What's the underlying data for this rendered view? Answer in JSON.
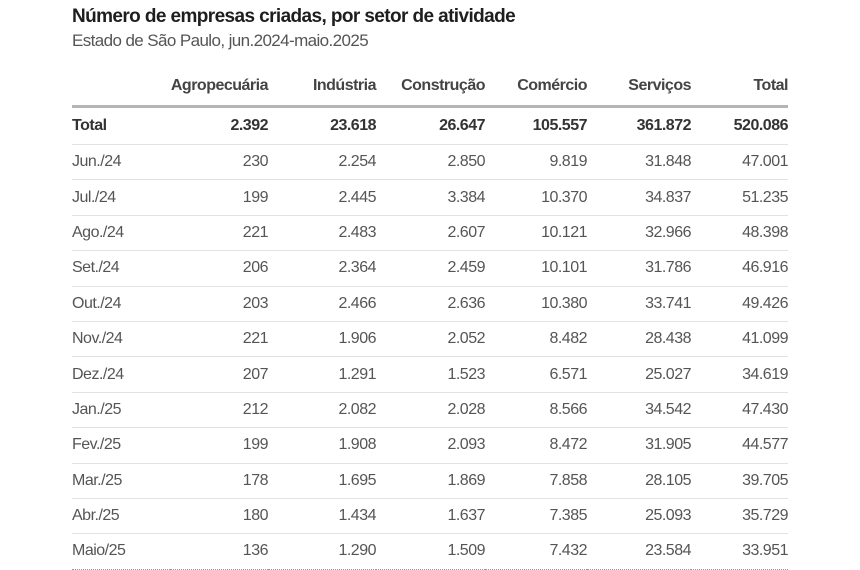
{
  "title": "Número de empresas criadas, por setor de atividade",
  "subtitle": "Estado de São Paulo, jun.2024-maio.2025",
  "table": {
    "headers": [
      "",
      "Agropecuária",
      "Indústria",
      "Construção",
      "Comércio",
      "Serviços",
      "Total"
    ],
    "rows": [
      [
        "Total",
        "2.392",
        "23.618",
        "26.647",
        "105.557",
        "361.872",
        "520.086"
      ],
      [
        "Jun./24",
        "230",
        "2.254",
        "2.850",
        "9.819",
        "31.848",
        "47.001"
      ],
      [
        "Jul./24",
        "199",
        "2.445",
        "3.384",
        "10.370",
        "34.837",
        "51.235"
      ],
      [
        "Ago./24",
        "221",
        "2.483",
        "2.607",
        "10.121",
        "32.966",
        "48.398"
      ],
      [
        "Set./24",
        "206",
        "2.364",
        "2.459",
        "10.101",
        "31.786",
        "46.916"
      ],
      [
        "Out./24",
        "203",
        "2.466",
        "2.636",
        "10.380",
        "33.741",
        "49.426"
      ],
      [
        "Nov./24",
        "221",
        "1.906",
        "2.052",
        "8.482",
        "28.438",
        "41.099"
      ],
      [
        "Dez./24",
        "207",
        "1.291",
        "1.523",
        "6.571",
        "25.027",
        "34.619"
      ],
      [
        "Jan./25",
        "212",
        "2.082",
        "2.028",
        "8.566",
        "34.542",
        "47.430"
      ],
      [
        "Fev./25",
        "199",
        "1.908",
        "2.093",
        "8.472",
        "31.905",
        "44.577"
      ],
      [
        "Mar./25",
        "178",
        "1.695",
        "1.869",
        "7.858",
        "28.105",
        "39.705"
      ],
      [
        "Abr./25",
        "180",
        "1.434",
        "1.637",
        "7.385",
        "25.093",
        "35.729"
      ],
      [
        "Maio/25",
        "136",
        "1.290",
        "1.509",
        "7.432",
        "23.584",
        "33.951"
      ]
    ]
  }
}
